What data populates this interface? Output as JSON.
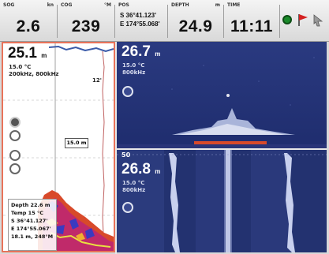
{
  "top_bar": {
    "sog": {
      "label": "SOG",
      "unit": "kn",
      "value": "2.6"
    },
    "cog": {
      "label": "COG",
      "unit": "°M",
      "value": "239"
    },
    "pos": {
      "label": "POS",
      "lat": "S 36°41.123'",
      "lon": "E 174°55.068'"
    },
    "depth": {
      "label": "DEPTH",
      "unit": "m",
      "value": "24.9"
    },
    "time": {
      "label": "TIME",
      "value": "11:11"
    }
  },
  "left_panel": {
    "depth": "25.1",
    "depth_unit": "m",
    "temp": "15.0 °C",
    "freq": "200kHz, 800kHz",
    "range_mark": "12'",
    "scale_label": "15.0 m",
    "info": {
      "depth_label": "Depth",
      "depth_value": "22.6 m",
      "temp_label": "Temp",
      "temp_value": "15 °C",
      "lat": "S 36°41.127'",
      "lon": "E 174°55.067'",
      "footer": "18.1 m, 248°M"
    }
  },
  "top_right_panel": {
    "depth": "26.7",
    "depth_unit": "m",
    "temp": "15.0 °C",
    "freq": "800kHz"
  },
  "bottom_right_panel": {
    "depth": "26.8",
    "depth_unit": "m",
    "temp": "15.0 °C",
    "freq": "800kHz",
    "scale_mark": "50"
  },
  "colors": {
    "sonar_blue": "#2d3d84",
    "accent_orange": "#e8735a",
    "status_green": "#1a8a2a",
    "status_red": "#d42020"
  },
  "icons": [
    "gps-status-icon",
    "anchor-flag-icon",
    "cursor-icon"
  ]
}
